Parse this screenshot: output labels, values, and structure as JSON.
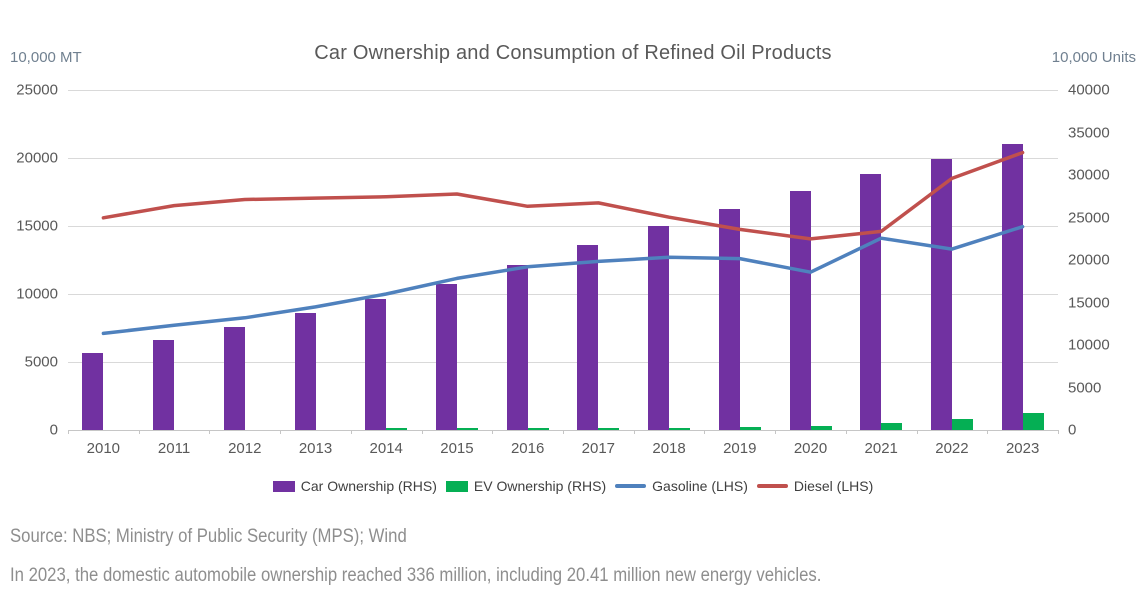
{
  "chart_data": {
    "type": "combo_bar_line",
    "title": "Car Ownership and Consumption of Refined Oil Products",
    "categories": [
      "2010",
      "2011",
      "2012",
      "2013",
      "2014",
      "2015",
      "2016",
      "2017",
      "2018",
      "2019",
      "2020",
      "2021",
      "2022",
      "2023"
    ],
    "series": [
      {
        "name": "Car Ownership (RHS)",
        "kind": "bar",
        "axis": "right",
        "color": "#7131A1",
        "values": [
          9086,
          10578,
          12089,
          13741,
          15447,
          17228,
          19440,
          21743,
          24028,
          25976,
          28087,
          30151,
          31903,
          33600
        ]
      },
      {
        "name": "EV Ownership (RHS)",
        "kind": "bar",
        "axis": "right",
        "color": "#05AF54",
        "values": [
          0,
          0,
          0,
          0,
          22,
          58,
          91,
          153,
          261,
          381,
          492,
          784,
          1310,
          2041
        ]
      },
      {
        "name": "Gasoline (LHS)",
        "kind": "line",
        "axis": "left",
        "color": "#4F81BD",
        "values": [
          7100,
          7700,
          8250,
          9050,
          10000,
          11150,
          12000,
          12400,
          12700,
          12600,
          11600,
          14100,
          13300,
          14950
        ]
      },
      {
        "name": "Diesel (LHS)",
        "kind": "line",
        "axis": "left",
        "color": "#C0504D",
        "values": [
          15600,
          16500,
          16950,
          17050,
          17150,
          17350,
          16450,
          16700,
          15650,
          14750,
          14050,
          14600,
          18500,
          20400
        ]
      }
    ],
    "left_axis": {
      "label": "10,000 MT",
      "min": 0,
      "max": 25000,
      "ticks": [
        25000,
        20000,
        15000,
        10000,
        5000,
        0
      ]
    },
    "right_axis": {
      "label": "10,000 Units",
      "min": 0,
      "max": 40000,
      "ticks": [
        40000,
        35000,
        30000,
        25000,
        20000,
        15000,
        10000,
        5000,
        0
      ]
    },
    "grid": "horizontal",
    "legend_position": "bottom"
  },
  "footer": {
    "source": "Source: NBS; Ministry of Public Security (MPS); Wind",
    "note": "In 2023, the domestic automobile ownership reached 336 million, including 20.41 million new energy vehicles."
  },
  "colors": {
    "grid": "#D9D9D9",
    "axis_line": "#C6C6C6",
    "axis_text": "#595959",
    "unit_text": "#708090",
    "legend_text": "#3F3F3F",
    "source_text": "#8E8E8E",
    "title_text": "#595959"
  }
}
